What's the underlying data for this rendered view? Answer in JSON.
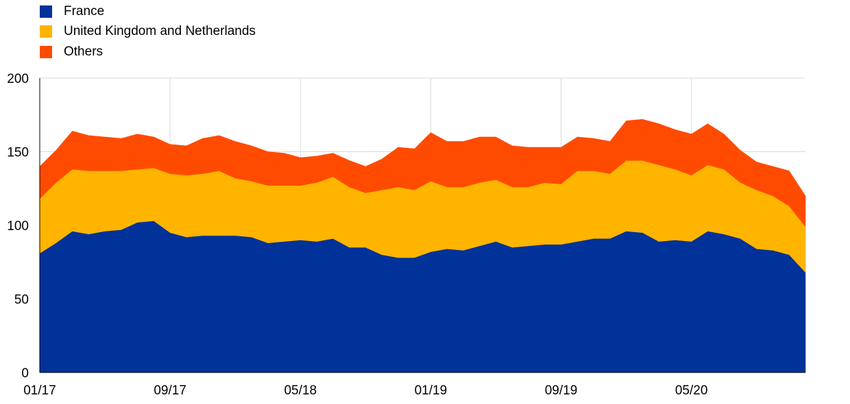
{
  "chart_data": {
    "type": "area",
    "stacked": true,
    "title": "",
    "xlabel": "",
    "ylabel": "",
    "ylim": [
      0,
      200
    ],
    "y_ticks": [
      0,
      50,
      100,
      150,
      200
    ],
    "x_tick_labels": [
      "01/17",
      "09/17",
      "05/18",
      "01/19",
      "09/19",
      "05/20"
    ],
    "x_tick_indices": [
      0,
      8,
      16,
      24,
      32,
      40
    ],
    "grid": true,
    "legend": "top-left",
    "x": [
      "01/17",
      "02/17",
      "03/17",
      "04/17",
      "05/17",
      "06/17",
      "07/17",
      "08/17",
      "09/17",
      "10/17",
      "11/17",
      "12/17",
      "01/18",
      "02/18",
      "03/18",
      "04/18",
      "05/18",
      "06/18",
      "07/18",
      "08/18",
      "09/18",
      "10/18",
      "11/18",
      "12/18",
      "01/19",
      "02/19",
      "03/19",
      "04/19",
      "05/19",
      "06/19",
      "07/19",
      "08/19",
      "09/19",
      "10/19",
      "11/19",
      "12/19",
      "01/20",
      "02/20",
      "03/20",
      "04/20",
      "05/20",
      "06/20",
      "07/20",
      "08/20",
      "09/20",
      "10/20",
      "11/20",
      "12/20"
    ],
    "series": [
      {
        "name": "France",
        "color": "#003299",
        "values": [
          81,
          88,
          96,
          94,
          96,
          97,
          102,
          103,
          95,
          92,
          93,
          93,
          93,
          92,
          88,
          89,
          90,
          89,
          91,
          85,
          85,
          80,
          78,
          78,
          82,
          84,
          83,
          86,
          89,
          85,
          86,
          87,
          87,
          89,
          91,
          91,
          96,
          95,
          89,
          90,
          89,
          96,
          94,
          91,
          84,
          83,
          80,
          68
        ]
      },
      {
        "name": "United Kingdom and Netherlands",
        "color": "#FFB400",
        "values": [
          37,
          41,
          42,
          43,
          41,
          40,
          36,
          36,
          40,
          42,
          42,
          44,
          39,
          38,
          39,
          38,
          37,
          40,
          42,
          41,
          37,
          44,
          48,
          46,
          48,
          42,
          43,
          43,
          42,
          41,
          40,
          42,
          41,
          48,
          46,
          44,
          48,
          49,
          52,
          48,
          45,
          45,
          44,
          38,
          40,
          37,
          33,
          31
        ]
      },
      {
        "name": "Others",
        "color": "#FF4B00",
        "values": [
          22,
          22,
          26,
          24,
          23,
          22,
          24,
          21,
          20,
          20,
          24,
          24,
          25,
          24,
          23,
          22,
          19,
          18,
          16,
          18,
          18,
          21,
          27,
          28,
          33,
          31,
          31,
          31,
          29,
          28,
          27,
          24,
          25,
          23,
          22,
          22,
          27,
          28,
          28,
          27,
          28,
          28,
          24,
          22,
          19,
          20,
          24,
          21
        ]
      }
    ]
  }
}
